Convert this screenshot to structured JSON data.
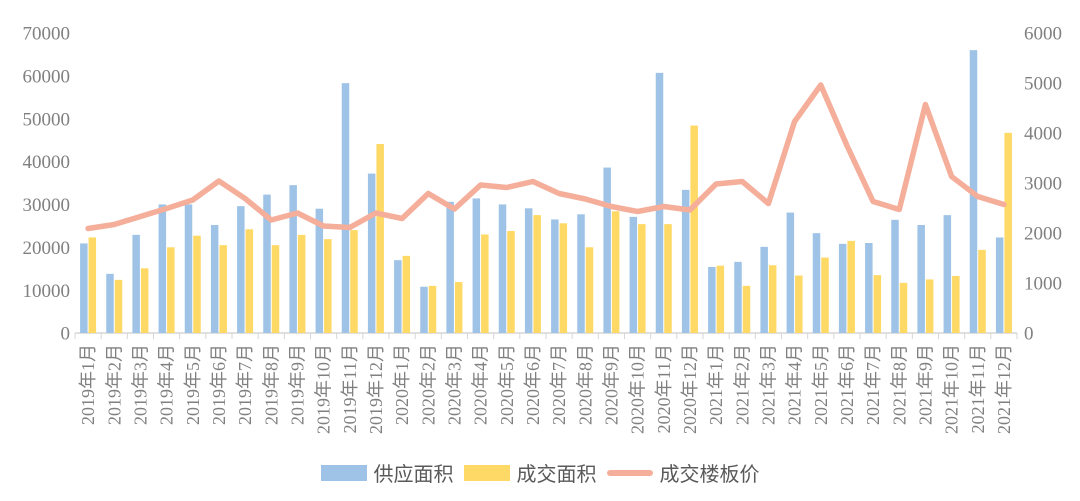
{
  "chart_data": {
    "type": "combo-bar-line",
    "title": "",
    "categories": [
      "2019年1月",
      "2019年2月",
      "2019年3月",
      "2019年4月",
      "2019年5月",
      "2019年6月",
      "2019年7月",
      "2019年8月",
      "2019年9月",
      "2019年10月",
      "2019年11月",
      "2019年12月",
      "2020年1月",
      "2020年2月",
      "2020年3月",
      "2020年4月",
      "2020年5月",
      "2020年6月",
      "2020年7月",
      "2020年8月",
      "2020年9月",
      "2020年10月",
      "2020年11月",
      "2020年12月",
      "2021年1月",
      "2021年2月",
      "2021年3月",
      "2021年4月",
      "2021年5月",
      "2021年6月",
      "2021年7月",
      "2021年8月",
      "2021年9月",
      "2021年10月",
      "2021年11月",
      "2021年12月"
    ],
    "series": [
      {
        "name": "供应面积",
        "type": "bar",
        "axis": "left",
        "color": "#9EC3E7",
        "values": [
          20900,
          13800,
          22900,
          30000,
          30000,
          25200,
          29600,
          32300,
          34500,
          29000,
          58300,
          37200,
          17000,
          10800,
          30600,
          31400,
          30000,
          29100,
          26500,
          27700,
          38600,
          27100,
          60700,
          33400,
          15400,
          16600,
          20100,
          28100,
          23300,
          20800,
          21000,
          26400,
          25200,
          27500,
          66000,
          22300
        ]
      },
      {
        "name": "成交面积",
        "type": "bar",
        "axis": "left",
        "color": "#FFD965",
        "values": [
          22300,
          12400,
          15100,
          20000,
          22700,
          20500,
          24200,
          20500,
          22900,
          21900,
          24000,
          44100,
          18000,
          11000,
          11900,
          23000,
          23800,
          27500,
          25600,
          20000,
          28400,
          25400,
          25400,
          48400,
          15700,
          11000,
          15800,
          13400,
          17600,
          21500,
          13500,
          11700,
          12500,
          13300,
          19400,
          46700
        ]
      },
      {
        "name": "成交楼板价",
        "type": "line",
        "axis": "right",
        "color": "#F4AE9A",
        "values": [
          2090,
          2170,
          2330,
          2490,
          2660,
          3040,
          2690,
          2260,
          2400,
          2140,
          2110,
          2400,
          2290,
          2790,
          2480,
          2960,
          2910,
          3030,
          2790,
          2680,
          2530,
          2430,
          2530,
          2460,
          2980,
          3030,
          2590,
          4230,
          4960,
          3750,
          2630,
          2470,
          4570,
          3130,
          2730,
          2570
        ]
      }
    ],
    "left_axis": {
      "min": 0,
      "max": 70000,
      "step": 10000,
      "labels": [
        "0",
        "10000",
        "20000",
        "30000",
        "40000",
        "50000",
        "60000",
        "70000"
      ]
    },
    "right_axis": {
      "min": 0,
      "max": 6000,
      "step": 1000,
      "labels": [
        "0",
        "1000",
        "2000",
        "3000",
        "4000",
        "5000",
        "6000"
      ]
    },
    "grid": false,
    "legend_position": "bottom",
    "axis_text_color": "#808080",
    "axis_line_color": "#d6d6d6",
    "legend_text_color": "#595959"
  }
}
